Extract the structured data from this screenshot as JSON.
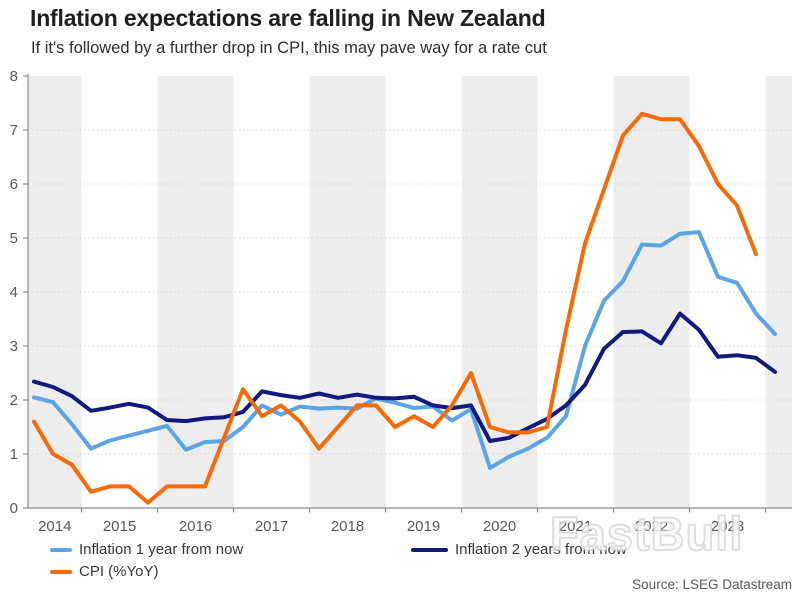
{
  "header": {
    "title": "Inflation expectations are falling in New Zealand",
    "subtitle": "If it's followed by a further drop in CPI, this may pave way for a rate cut"
  },
  "source": "Source: LSEG Datastream",
  "watermark": "FastBull",
  "legend": [
    {
      "label": "Inflation 1 year from now",
      "color": "#5BA4E5"
    },
    {
      "label": "Inflation 2 years from now",
      "color": "#14197F"
    },
    {
      "label": "CPI (%YoY)",
      "color": "#F76A05"
    }
  ],
  "chart_data": {
    "type": "line",
    "title": "Inflation expectations are falling in New Zealand",
    "subtitle": "If it's followed by a further drop in CPI, this may pave way for a rate cut",
    "xlabel": "",
    "ylabel": "",
    "ylim": [
      0,
      8
    ],
    "y_ticks": [
      0,
      1,
      2,
      3,
      4,
      5,
      6,
      7,
      8
    ],
    "x_tick_labels": [
      "2014",
      "2015",
      "2016",
      "2017",
      "2018",
      "2019",
      "2020",
      "2021",
      "2022",
      "2023"
    ],
    "shaded_years": [
      2014,
      2016,
      2018,
      2020,
      2022,
      2024
    ],
    "grid": "dotted horizontal gridlines",
    "legend_position": "bottom",
    "x_unit": "quarterly",
    "quarters": [
      "2014 Q2",
      "2014 Q3",
      "2014 Q4",
      "2015 Q1",
      "2015 Q2",
      "2015 Q3",
      "2015 Q4",
      "2016 Q1",
      "2016 Q2",
      "2016 Q3",
      "2016 Q4",
      "2017 Q1",
      "2017 Q2",
      "2017 Q3",
      "2017 Q4",
      "2018 Q1",
      "2018 Q2",
      "2018 Q3",
      "2018 Q4",
      "2019 Q1",
      "2019 Q2",
      "2019 Q3",
      "2019 Q4",
      "2020 Q1",
      "2020 Q2",
      "2020 Q3",
      "2020 Q4",
      "2021 Q1",
      "2021 Q2",
      "2021 Q3",
      "2021 Q4",
      "2022 Q1",
      "2022 Q2",
      "2022 Q3",
      "2022 Q4",
      "2023 Q1",
      "2023 Q2",
      "2023 Q3",
      "2023 Q4",
      "2024 Q1"
    ],
    "series": [
      {
        "name": "Inflation 1 year from now",
        "color": "#5BA4E5",
        "values": [
          2.05,
          1.96,
          1.55,
          1.1,
          1.25,
          1.34,
          1.43,
          1.52,
          1.08,
          1.22,
          1.24,
          1.5,
          1.9,
          1.73,
          1.88,
          1.84,
          1.86,
          1.84,
          2.03,
          1.95,
          1.85,
          1.88,
          1.62,
          1.83,
          0.74,
          0.95,
          1.1,
          1.3,
          1.7,
          3.0,
          3.84,
          4.2,
          4.88,
          4.86,
          5.08,
          5.11,
          4.28,
          4.17,
          3.6,
          3.22
        ]
      },
      {
        "name": "Inflation 2 years from now",
        "color": "#14197F",
        "values": [
          2.34,
          2.24,
          2.07,
          1.8,
          1.86,
          1.93,
          1.86,
          1.63,
          1.61,
          1.66,
          1.68,
          1.78,
          2.16,
          2.09,
          2.04,
          2.12,
          2.04,
          2.1,
          2.04,
          2.03,
          2.06,
          1.9,
          1.85,
          1.9,
          1.24,
          1.3,
          1.48,
          1.65,
          1.9,
          2.28,
          2.95,
          3.26,
          3.27,
          3.05,
          3.6,
          3.3,
          2.8,
          2.83,
          2.78,
          2.52
        ]
      },
      {
        "name": "CPI (%YoY)",
        "color": "#F76A05",
        "values": [
          1.6,
          1.0,
          0.8,
          0.3,
          0.4,
          0.4,
          0.1,
          0.4,
          0.4,
          0.4,
          1.3,
          2.2,
          1.7,
          1.9,
          1.6,
          1.1,
          1.5,
          1.9,
          1.9,
          1.5,
          1.7,
          1.5,
          1.9,
          2.5,
          1.5,
          1.4,
          1.4,
          1.5,
          3.3,
          4.9,
          5.9,
          6.9,
          7.3,
          7.2,
          7.2,
          6.7,
          6.0,
          5.6,
          4.7
        ]
      }
    ]
  }
}
